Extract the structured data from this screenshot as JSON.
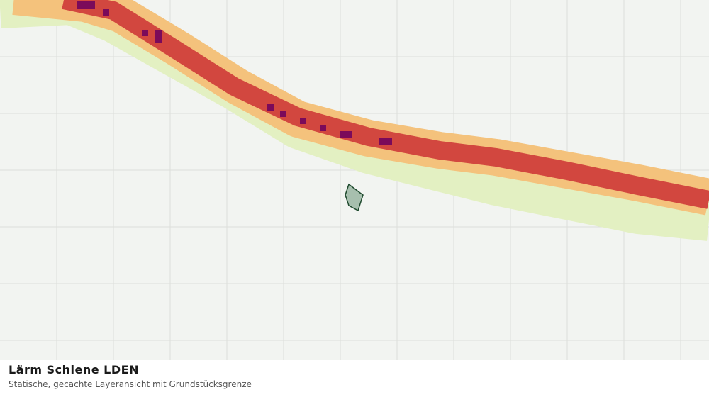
{
  "map": {
    "title": "Lärm Schiene LDEN",
    "subtitle": "Statische, gecachte Layeransicht mit Grundstücksgrenze"
  }
}
